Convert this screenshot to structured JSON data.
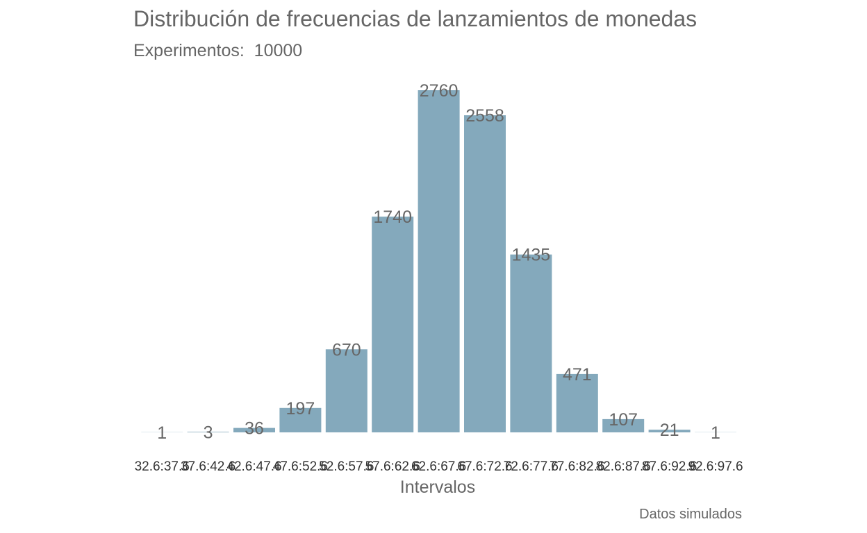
{
  "chart_data": {
    "type": "bar",
    "title": "Distribución de frecuencias de lanzamientos de monedas",
    "subtitle": "Experimentos:  10000",
    "caption": "Datos simulados",
    "xlabel": "Intervalos",
    "ylabel": "",
    "categories": [
      "32.6:37.6",
      "37.6:42.6",
      "42.6:47.6",
      "47.6:52.6",
      "52.6:57.6",
      "57.6:62.6",
      "62.6:67.6",
      "67.6:72.6",
      "72.6:77.6",
      "77.6:82.6",
      "82.6:87.6",
      "87.6:92.6",
      "92.6:97.6"
    ],
    "values": [
      1,
      3,
      36,
      197,
      670,
      1740,
      2760,
      2558,
      1435,
      471,
      107,
      21,
      1
    ],
    "ylim": [
      0,
      2760
    ],
    "grid": false,
    "legend": "none",
    "bar_color": "#84a9bc",
    "text_color": "#666666"
  }
}
